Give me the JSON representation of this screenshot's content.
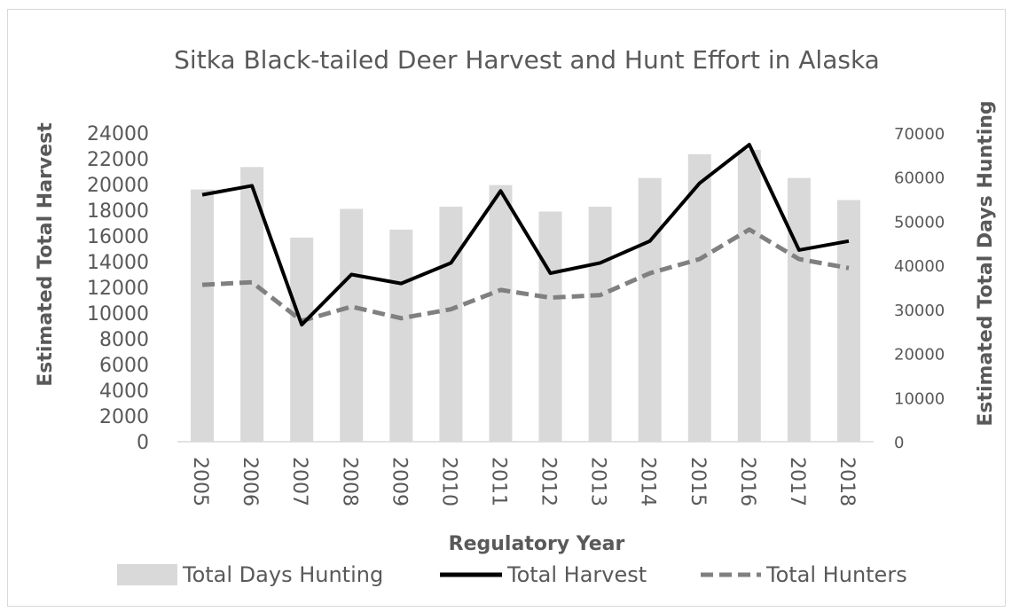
{
  "chart_data": {
    "type": "bar",
    "title": "Sitka Black-tailed Deer Harvest and Hunt Effort in Alaska",
    "xlabel": "Regulatory Year",
    "ylabel": "Estimated Total Harvest",
    "y2label": "Estimated Total Days Hunting",
    "categories": [
      "2005",
      "2006",
      "2007",
      "2008",
      "2009",
      "2010",
      "2011",
      "2012",
      "2013",
      "2014",
      "2015",
      "2016",
      "2017",
      "2018"
    ],
    "ylim": [
      0,
      24000
    ],
    "y_ticks": [
      "0",
      "2000",
      "4000",
      "6000",
      "8000",
      "10000",
      "12000",
      "14000",
      "16000",
      "18000",
      "20000",
      "22000",
      "24000"
    ],
    "y2lim": [
      0,
      70000
    ],
    "y2_ticks": [
      "0",
      "10000",
      "20000",
      "30000",
      "40000",
      "50000",
      "60000",
      "70000"
    ],
    "series": [
      {
        "name": "Total Days Hunting",
        "type": "bar",
        "axis": "right",
        "color": "#d9d9d9",
        "values": [
          57200,
          62300,
          46300,
          52800,
          48100,
          53300,
          58200,
          52200,
          53300,
          59800,
          65200,
          66200,
          59800,
          54800
        ]
      },
      {
        "name": "Total Harvest",
        "type": "line",
        "axis": "left",
        "color": "#000000",
        "dash": "solid",
        "values": [
          19200,
          19900,
          9100,
          13000,
          12300,
          13900,
          19500,
          13100,
          13900,
          15600,
          20100,
          23100,
          14900,
          15600
        ]
      },
      {
        "name": "Total Hunters",
        "type": "line",
        "axis": "left",
        "color": "#808080",
        "dash": "dashed",
        "values": [
          12200,
          12400,
          9400,
          10500,
          9600,
          10300,
          11800,
          11200,
          11400,
          13100,
          14200,
          16500,
          14200,
          13500
        ]
      }
    ],
    "grid": false,
    "legend_position": "bottom"
  }
}
